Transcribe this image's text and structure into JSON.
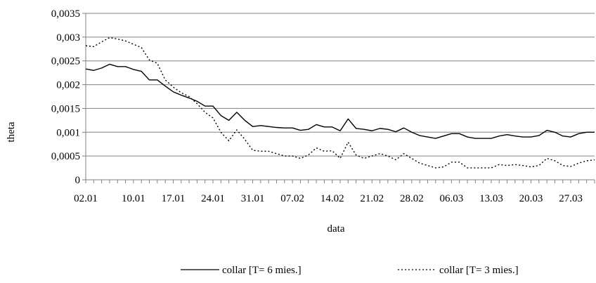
{
  "chart_data": {
    "type": "line",
    "title": "",
    "xlabel": "data",
    "ylabel": "theta",
    "ylim": [
      0,
      0.0035
    ],
    "y_ticks": [
      0,
      0.0005,
      0.001,
      0.0015,
      0.002,
      0.0025,
      0.003,
      0.0035
    ],
    "y_tick_labels": [
      "0",
      "0,0005",
      "0,001",
      "0,0015",
      "0,002",
      "0,0025",
      "0,003",
      "0,0035"
    ],
    "x_ticks": [
      "02.01",
      "10.01",
      "17.01",
      "24.01",
      "31.01",
      "07.02",
      "14.02",
      "21.02",
      "28.02",
      "06.03",
      "13.03",
      "20.03",
      "27.03"
    ],
    "x_tick_index": [
      0,
      6,
      11,
      16,
      21,
      26,
      31,
      36,
      41,
      46,
      51,
      56,
      61
    ],
    "n_points": 65,
    "grid": "horizontal",
    "legend_position": "bottom",
    "colors": {
      "line": "#000000",
      "grid": "#808080",
      "axis": "#808080"
    },
    "series": [
      {
        "name": "collar [T= 6 mies.]",
        "style": "solid",
        "values": [
          0.00233,
          0.0023,
          0.00235,
          0.00243,
          0.00238,
          0.00238,
          0.00232,
          0.00228,
          0.0021,
          0.0021,
          0.00197,
          0.00185,
          0.00178,
          0.00172,
          0.00165,
          0.00155,
          0.00155,
          0.00135,
          0.00125,
          0.00142,
          0.00125,
          0.00112,
          0.00114,
          0.00112,
          0.0011,
          0.00109,
          0.00109,
          0.00104,
          0.00106,
          0.00116,
          0.00111,
          0.00111,
          0.00103,
          0.00128,
          0.00108,
          0.00106,
          0.00103,
          0.00108,
          0.00106,
          0.00101,
          0.00109,
          0.001,
          0.00093,
          0.0009,
          0.00087,
          0.00092,
          0.00097,
          0.00097,
          0.0009,
          0.00087,
          0.00087,
          0.00087,
          0.00092,
          0.00095,
          0.00092,
          0.0009,
          0.0009,
          0.00093,
          0.00104,
          0.001,
          0.00092,
          0.0009,
          0.00097,
          0.001,
          0.001
        ]
      },
      {
        "name": "collar [T= 3 mies.]",
        "style": "dotted",
        "values": [
          0.00282,
          0.0028,
          0.0029,
          0.00299,
          0.00296,
          0.00292,
          0.00285,
          0.00278,
          0.00252,
          0.00245,
          0.0021,
          0.00195,
          0.00183,
          0.00175,
          0.0016,
          0.00142,
          0.0013,
          0.001,
          0.00082,
          0.00105,
          0.00085,
          0.00062,
          0.0006,
          0.0006,
          0.00055,
          0.0005,
          0.0005,
          0.00045,
          0.00052,
          0.00067,
          0.0006,
          0.00061,
          0.00045,
          0.00079,
          0.00052,
          0.00045,
          0.0005,
          0.00055,
          0.0005,
          0.00042,
          0.00055,
          0.00045,
          0.00035,
          0.0003,
          0.00025,
          0.00027,
          0.00037,
          0.00037,
          0.00025,
          0.00025,
          0.00025,
          0.00025,
          0.00032,
          0.0003,
          0.00032,
          0.0003,
          0.00027,
          0.0003,
          0.00045,
          0.0004,
          0.0003,
          0.00028,
          0.00035,
          0.0004,
          0.00042
        ]
      }
    ]
  }
}
